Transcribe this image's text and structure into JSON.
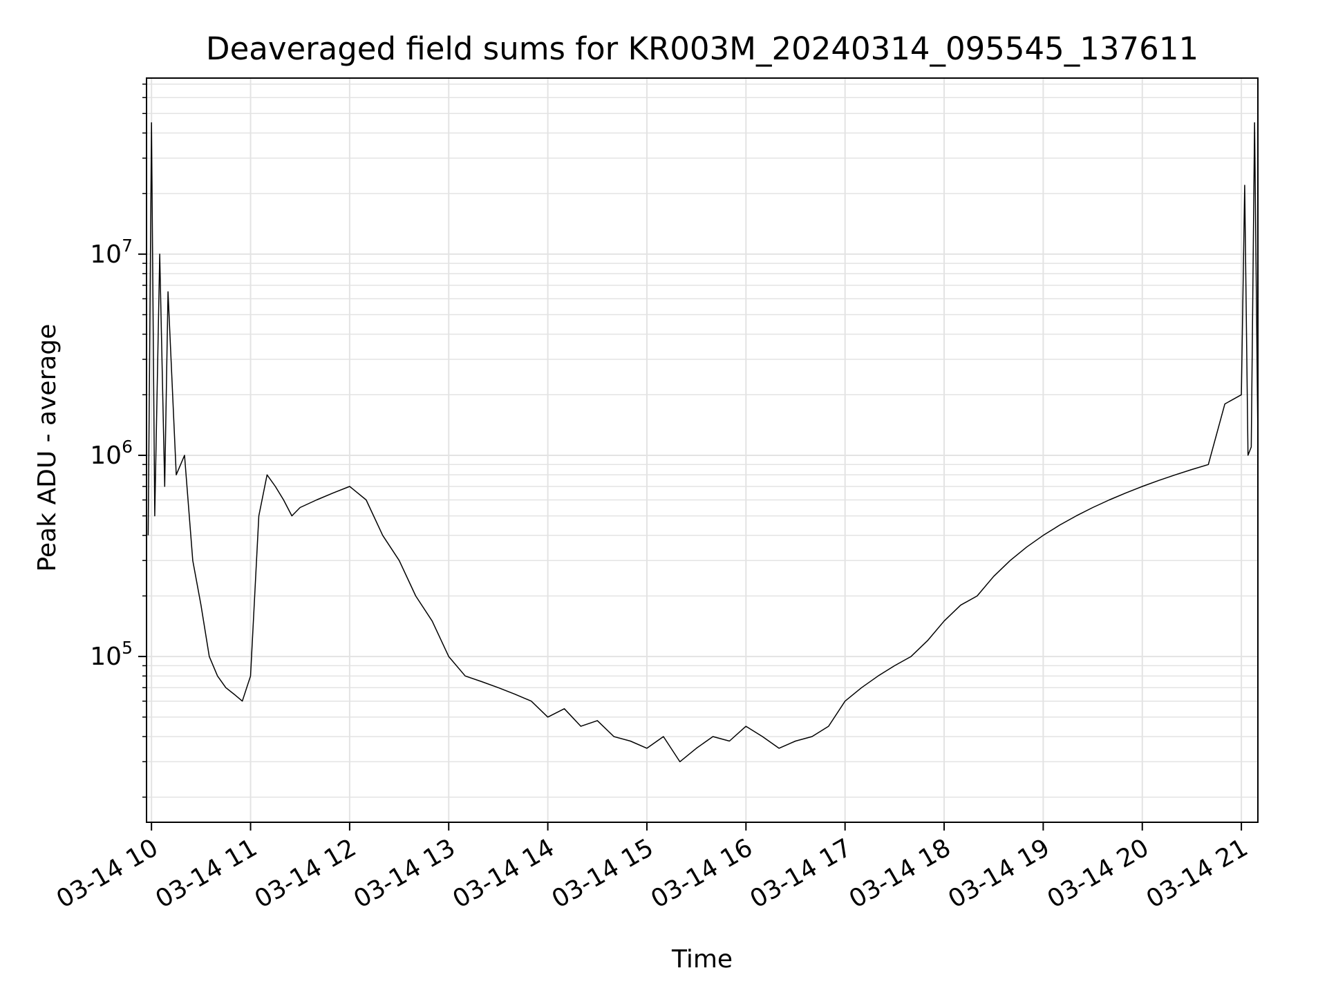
{
  "chart_data": {
    "type": "line",
    "title": "Deaveraged field sums for KR003M_20240314_095545_137611",
    "xlabel": "Time",
    "ylabel": "Peak ADU - average",
    "yscale": "log",
    "grid": true,
    "legend": "none",
    "line_color": "#000000",
    "xlim": [
      "2024-03-14 09:57",
      "2024-03-14 21:10"
    ],
    "ylim": [
      15000,
      75000000
    ],
    "x_ticks": [
      {
        "t": "2024-03-14 10:00",
        "label": "03-14 10"
      },
      {
        "t": "2024-03-14 11:00",
        "label": "03-14 11"
      },
      {
        "t": "2024-03-14 12:00",
        "label": "03-14 12"
      },
      {
        "t": "2024-03-14 13:00",
        "label": "03-14 13"
      },
      {
        "t": "2024-03-14 14:00",
        "label": "03-14 14"
      },
      {
        "t": "2024-03-14 15:00",
        "label": "03-14 15"
      },
      {
        "t": "2024-03-14 16:00",
        "label": "03-14 16"
      },
      {
        "t": "2024-03-14 17:00",
        "label": "03-14 17"
      },
      {
        "t": "2024-03-14 18:00",
        "label": "03-14 18"
      },
      {
        "t": "2024-03-14 19:00",
        "label": "03-14 19"
      },
      {
        "t": "2024-03-14 20:00",
        "label": "03-14 20"
      },
      {
        "t": "2024-03-14 21:00",
        "label": "03-14 21"
      }
    ],
    "y_ticks": [
      {
        "value": 100000,
        "base": "10",
        "exp": "5"
      },
      {
        "value": 1000000,
        "base": "10",
        "exp": "6"
      },
      {
        "value": 10000000,
        "base": "10",
        "exp": "7"
      }
    ],
    "series": [
      {
        "x": [
          "2024-03-14 09:58",
          "2024-03-14 10:00",
          "2024-03-14 10:02",
          "2024-03-14 10:05",
          "2024-03-14 10:08",
          "2024-03-14 10:10",
          "2024-03-14 10:15",
          "2024-03-14 10:20",
          "2024-03-14 10:25",
          "2024-03-14 10:30",
          "2024-03-14 10:35",
          "2024-03-14 10:40",
          "2024-03-14 10:45",
          "2024-03-14 10:50",
          "2024-03-14 10:55",
          "2024-03-14 11:00",
          "2024-03-14 11:05",
          "2024-03-14 11:10",
          "2024-03-14 11:15",
          "2024-03-14 11:20",
          "2024-03-14 11:25",
          "2024-03-14 11:30",
          "2024-03-14 11:40",
          "2024-03-14 11:50",
          "2024-03-14 12:00",
          "2024-03-14 12:10",
          "2024-03-14 12:20",
          "2024-03-14 12:30",
          "2024-03-14 12:40",
          "2024-03-14 12:50",
          "2024-03-14 13:00",
          "2024-03-14 13:10",
          "2024-03-14 13:20",
          "2024-03-14 13:30",
          "2024-03-14 13:40",
          "2024-03-14 13:50",
          "2024-03-14 14:00",
          "2024-03-14 14:10",
          "2024-03-14 14:20",
          "2024-03-14 14:30",
          "2024-03-14 14:40",
          "2024-03-14 14:50",
          "2024-03-14 15:00",
          "2024-03-14 15:10",
          "2024-03-14 15:20",
          "2024-03-14 15:30",
          "2024-03-14 15:40",
          "2024-03-14 15:50",
          "2024-03-14 16:00",
          "2024-03-14 16:10",
          "2024-03-14 16:20",
          "2024-03-14 16:30",
          "2024-03-14 16:40",
          "2024-03-14 16:50",
          "2024-03-14 17:00",
          "2024-03-14 17:10",
          "2024-03-14 17:20",
          "2024-03-14 17:30",
          "2024-03-14 17:40",
          "2024-03-14 17:50",
          "2024-03-14 18:00",
          "2024-03-14 18:10",
          "2024-03-14 18:20",
          "2024-03-14 18:30",
          "2024-03-14 18:40",
          "2024-03-14 18:50",
          "2024-03-14 19:00",
          "2024-03-14 19:10",
          "2024-03-14 19:20",
          "2024-03-14 19:30",
          "2024-03-14 19:40",
          "2024-03-14 19:50",
          "2024-03-14 20:00",
          "2024-03-14 20:10",
          "2024-03-14 20:20",
          "2024-03-14 20:30",
          "2024-03-14 20:40",
          "2024-03-14 20:50",
          "2024-03-14 21:00",
          "2024-03-14 21:02",
          "2024-03-14 21:04",
          "2024-03-14 21:06",
          "2024-03-14 21:08",
          "2024-03-14 21:10"
        ],
        "y": [
          400000,
          45000000,
          500000,
          10000000,
          700000,
          6500000,
          800000,
          1000000,
          300000,
          180000,
          100000,
          80000,
          70000,
          65000,
          60000,
          80000,
          500000,
          800000,
          700000,
          600000,
          500000,
          550000,
          600000,
          650000,
          700000,
          600000,
          400000,
          300000,
          200000,
          150000,
          100000,
          80000,
          75000,
          70000,
          65000,
          60000,
          50000,
          55000,
          45000,
          48000,
          40000,
          38000,
          35000,
          40000,
          30000,
          35000,
          40000,
          38000,
          45000,
          40000,
          35000,
          38000,
          40000,
          45000,
          60000,
          70000,
          80000,
          90000,
          100000,
          120000,
          150000,
          180000,
          200000,
          250000,
          300000,
          350000,
          400000,
          450000,
          500000,
          550000,
          600000,
          650000,
          700000,
          750000,
          800000,
          850000,
          900000,
          1800000,
          2000000,
          22000000,
          1000000,
          1100000,
          45000000,
          1200000
        ]
      }
    ]
  }
}
